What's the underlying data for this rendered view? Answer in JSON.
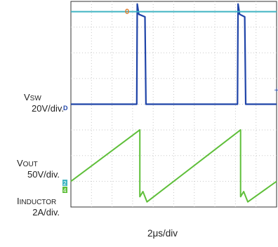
{
  "chart_data": {
    "type": "line",
    "title": "",
    "xlabel": "2μs/div",
    "grid": true,
    "x_unit": "μs",
    "x_range": [
      0,
      20
    ],
    "traces": [
      {
        "name_main": "V",
        "name_sub": "SW",
        "scale": "20V/div.",
        "marker": "D",
        "color": "#1f44a8",
        "y_div_range": [
          -4,
          4
        ],
        "points": [
          [
            0,
            0
          ],
          [
            6.4,
            0
          ],
          [
            6.45,
            3.9
          ],
          [
            6.6,
            3.5
          ],
          [
            7.2,
            3.4
          ],
          [
            7.3,
            0
          ],
          [
            16.2,
            0
          ],
          [
            16.25,
            3.9
          ],
          [
            16.4,
            3.5
          ],
          [
            16.9,
            3.4
          ],
          [
            17.0,
            0
          ],
          [
            20,
            0
          ]
        ]
      },
      {
        "name_main": "V",
        "name_sub": "OUT",
        "scale": "50V/div.",
        "marker": "2",
        "color": "#3fb4c2",
        "y_div_range": [
          -4,
          4
        ],
        "points": [
          [
            0,
            3.6
          ],
          [
            20,
            3.6
          ]
        ]
      },
      {
        "name_main": "I",
        "name_sub": "INDUCTOR",
        "scale": "2A/div.",
        "marker": "4",
        "color": "#5fbf3a",
        "y_div_range": [
          -4,
          4
        ],
        "points": [
          [
            0,
            -3.0
          ],
          [
            6.7,
            -1.0
          ],
          [
            6.7,
            -3.6
          ],
          [
            7.0,
            -3.4
          ],
          [
            7.4,
            -3.8
          ],
          [
            16.5,
            -1.0
          ],
          [
            16.5,
            -3.6
          ],
          [
            16.8,
            -3.4
          ],
          [
            17.2,
            -3.8
          ],
          [
            20,
            -3.0
          ]
        ]
      }
    ],
    "trigger_marker": "0"
  }
}
